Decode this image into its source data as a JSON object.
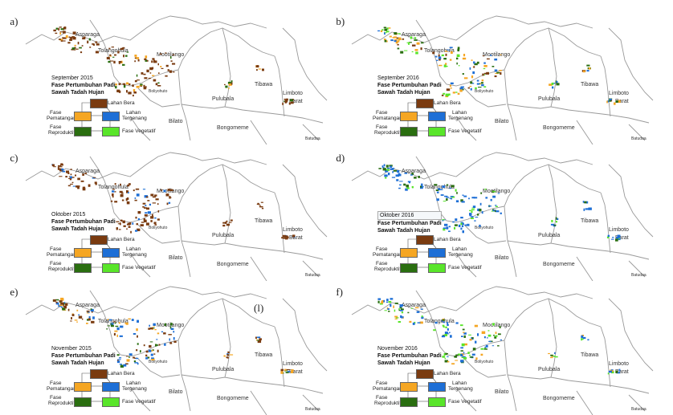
{
  "colors": {
    "bare": "#7a3b10",
    "flooded": "#1e6fd6",
    "vegetative": "#59e52a",
    "reproductive": "#2a6e10",
    "ripening": "#f5a623",
    "boundary": "#9a9a9a"
  },
  "panels": [
    {
      "id": "a",
      "label": "(a)",
      "date": "September 2015",
      "title1": "Fase Pertumbuhan Padi",
      "title2": "Sawah Tadah Hujan"
    },
    {
      "id": "b",
      "label": "(b)",
      "date": "September 2016",
      "title1": "Fase Pertumbuhan Padi",
      "title2": "Sawah Tadah Hujan"
    },
    {
      "id": "c",
      "label": "(c)",
      "date": "Oktober 2015",
      "title1": "Fase Pertumbuhan Padi",
      "title2": "Sawah Tadah Hujan"
    },
    {
      "id": "d",
      "label": "(d)",
      "date": "Oktober 2016",
      "title1": "Fase Pertumbuhan Padi",
      "title2": "Sawah Tadah Hujan"
    },
    {
      "id": "e",
      "label": "(e)",
      "date": "November 2015",
      "title1": "Fase Pertumbuhan Padi",
      "title2": "Sawah Tadah Hujan"
    },
    {
      "id": "f",
      "label": "(f)",
      "date": "November 2016",
      "title1": "Fase Pertumbuhan Padi",
      "title2": "Sawah Tadah Hujan"
    }
  ],
  "extra_label": "(l)",
  "places": {
    "asparaga": "Asparaga",
    "tolangohula": "Tolangohula",
    "mootilango": "Mootilango",
    "bongomeme": "Bongomeme",
    "pulubala": "Pulubala",
    "tibawa": "Tibawa",
    "limboto": "Limboto",
    "barat": "Barat",
    "bilato": "Bilato",
    "boliyohuto": "Boliyohuto",
    "batudaa": "Batudaa"
  },
  "legend": {
    "lahan_bera": "Lahan Bera",
    "fase": "Fase",
    "pematangan": "Pematangan",
    "lahan": "Lahan",
    "tergenang": "Tergenang",
    "reproduktif": "Reproduktif",
    "vegetatif": "Fase Vegetatif"
  }
}
